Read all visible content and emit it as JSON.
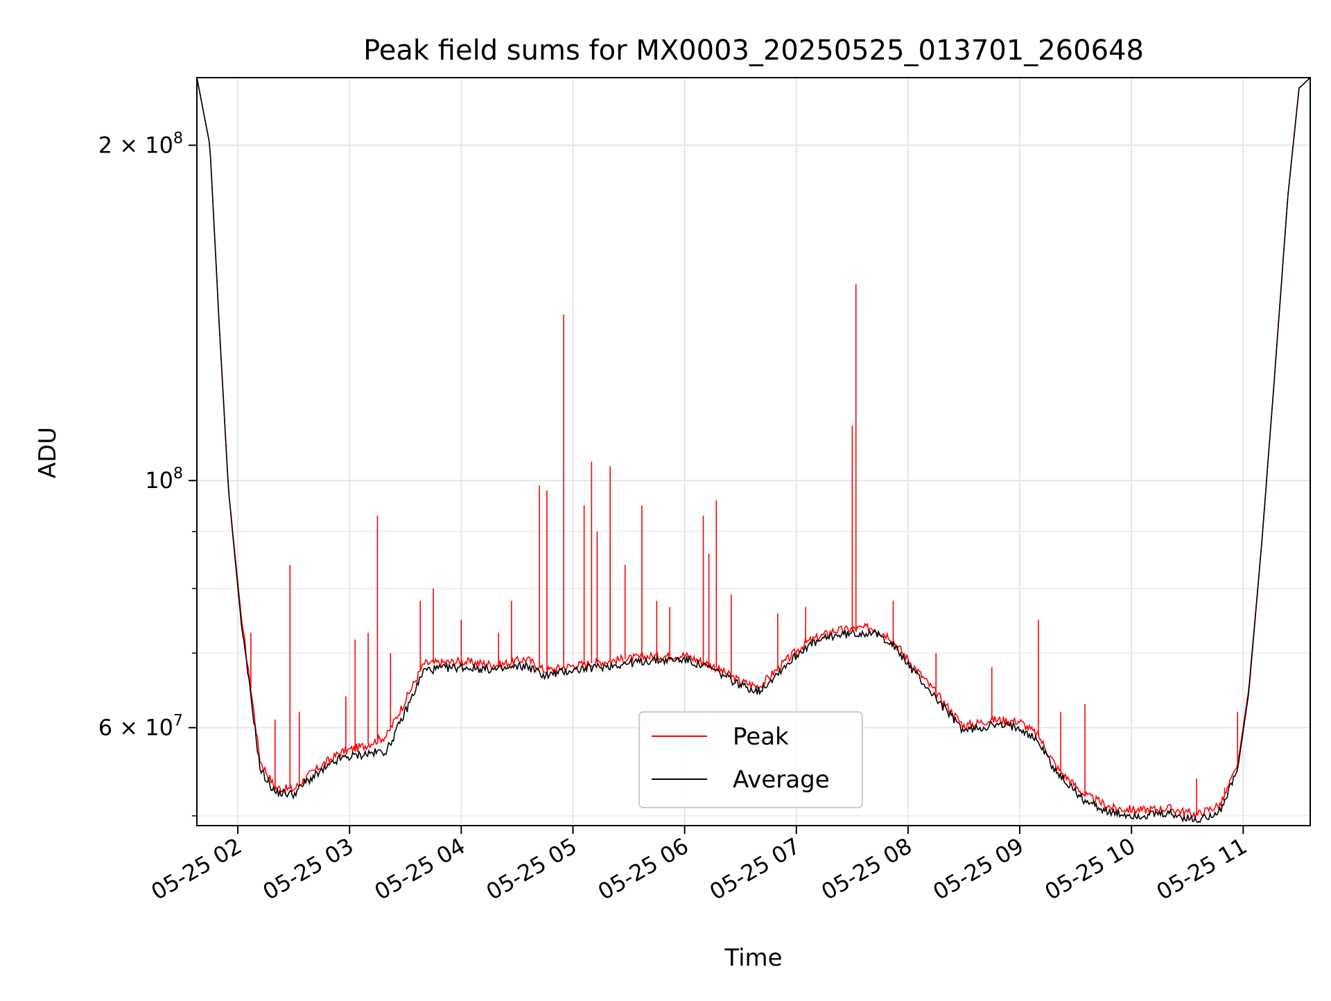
{
  "chart_data": {
    "type": "line",
    "title": "Peak field sums for MX0003_20250525_013701_260648",
    "xlabel": "Time",
    "ylabel": "ADU",
    "yscale": "log",
    "xlim": [
      "2025-05-25T01:38",
      "2025-05-25T11:36"
    ],
    "ylim": [
      49000000,
      230000000
    ],
    "grid": true,
    "legend_position": "lower center",
    "x_tick_labels": [
      "05-25 02",
      "05-25 03",
      "05-25 04",
      "05-25 05",
      "05-25 06",
      "05-25 07",
      "05-25 08",
      "05-25 09",
      "05-25 10",
      "05-25 11"
    ],
    "x_ticks": [
      "2025-05-25T02:00",
      "2025-05-25T03:00",
      "2025-05-25T04:00",
      "2025-05-25T05:00",
      "2025-05-25T06:00",
      "2025-05-25T07:00",
      "2025-05-25T08:00",
      "2025-05-25T09:00",
      "2025-05-25T10:00",
      "2025-05-25T11:00"
    ],
    "y_major_ticks": [
      {
        "value": 200000000,
        "mantissa": "2",
        "base": "10",
        "exp": "8"
      },
      {
        "value": 100000000,
        "mantissa": "",
        "base": "10",
        "exp": "8"
      },
      {
        "value": 60000000,
        "mantissa": "6",
        "base": "10",
        "exp": "7"
      }
    ],
    "y_minor_grid": [
      50000000,
      70000000,
      80000000,
      90000000
    ],
    "series": [
      {
        "name": "Peak",
        "color": "#ff0000",
        "points": [
          [
            "2025-05-25T01:38",
            230000000
          ],
          [
            "2025-05-25T01:45",
            200000000
          ],
          [
            "2025-05-25T01:50",
            138000000
          ],
          [
            "2025-05-25T01:55",
            98000000
          ],
          [
            "2025-05-25T02:02",
            75000000
          ],
          [
            "2025-05-25T02:07",
            65000000
          ],
          [
            "2025-05-25T02:12",
            56000000
          ],
          [
            "2025-05-25T02:20",
            53000000
          ],
          [
            "2025-05-25T02:30",
            52800000
          ],
          [
            "2025-05-25T02:37",
            54200000
          ],
          [
            "2025-05-25T02:45",
            55500000
          ],
          [
            "2025-05-25T02:55",
            57000000
          ],
          [
            "2025-05-25T03:08",
            57800000
          ],
          [
            "2025-05-25T03:20",
            59000000
          ],
          [
            "2025-05-25T03:30",
            63500000
          ],
          [
            "2025-05-25T03:40",
            68500000
          ],
          [
            "2025-05-25T04:00",
            68800000
          ],
          [
            "2025-05-25T04:20",
            68300000
          ],
          [
            "2025-05-25T04:35",
            69200000
          ],
          [
            "2025-05-25T04:45",
            67500000
          ],
          [
            "2025-05-25T05:00",
            68200000
          ],
          [
            "2025-05-25T05:20",
            68900000
          ],
          [
            "2025-05-25T05:40",
            69500000
          ],
          [
            "2025-05-25T06:00",
            69700000
          ],
          [
            "2025-05-25T06:15",
            68200000
          ],
          [
            "2025-05-25T06:30",
            66000000
          ],
          [
            "2025-05-25T06:40",
            65300000
          ],
          [
            "2025-05-25T06:52",
            68300000
          ],
          [
            "2025-05-25T07:05",
            71500000
          ],
          [
            "2025-05-25T07:20",
            73300000
          ],
          [
            "2025-05-25T07:40",
            73800000
          ],
          [
            "2025-05-25T07:50",
            72500000
          ],
          [
            "2025-05-25T08:05",
            67500000
          ],
          [
            "2025-05-25T08:20",
            63000000
          ],
          [
            "2025-05-25T08:30",
            60200000
          ],
          [
            "2025-05-25T08:45",
            61000000
          ],
          [
            "2025-05-25T09:00",
            60800000
          ],
          [
            "2025-05-25T09:10",
            59000000
          ],
          [
            "2025-05-25T09:20",
            55200000
          ],
          [
            "2025-05-25T09:35",
            52200000
          ],
          [
            "2025-05-25T09:50",
            50800000
          ],
          [
            "2025-05-25T10:05",
            50600000
          ],
          [
            "2025-05-25T10:20",
            50800000
          ],
          [
            "2025-05-25T10:35",
            50100000
          ],
          [
            "2025-05-25T10:48",
            51200000
          ],
          [
            "2025-05-25T10:57",
            55500000
          ],
          [
            "2025-05-25T11:03",
            65000000
          ],
          [
            "2025-05-25T11:10",
            88000000
          ],
          [
            "2025-05-25T11:17",
            125000000
          ],
          [
            "2025-05-25T11:24",
            180000000
          ],
          [
            "2025-05-25T11:30",
            225000000
          ],
          [
            "2025-05-25T11:36",
            230000000
          ]
        ],
        "spikes": [
          [
            "2025-05-25T02:07",
            73000000
          ],
          [
            "2025-05-25T02:20",
            61000000
          ],
          [
            "2025-05-25T02:28",
            84000000
          ],
          [
            "2025-05-25T02:33",
            62000000
          ],
          [
            "2025-05-25T02:58",
            64000000
          ],
          [
            "2025-05-25T03:03",
            72000000
          ],
          [
            "2025-05-25T03:10",
            73000000
          ],
          [
            "2025-05-25T03:15",
            93000000
          ],
          [
            "2025-05-25T03:22",
            70000000
          ],
          [
            "2025-05-25T03:38",
            78000000
          ],
          [
            "2025-05-25T03:45",
            80000000
          ],
          [
            "2025-05-25T04:00",
            75000000
          ],
          [
            "2025-05-25T04:20",
            73000000
          ],
          [
            "2025-05-25T04:27",
            78000000
          ],
          [
            "2025-05-25T04:42",
            99000000
          ],
          [
            "2025-05-25T04:46",
            98000000
          ],
          [
            "2025-05-25T04:55",
            141000000
          ],
          [
            "2025-05-25T05:06",
            95000000
          ],
          [
            "2025-05-25T05:10",
            104000000
          ],
          [
            "2025-05-25T05:13",
            90000000
          ],
          [
            "2025-05-25T05:20",
            103000000
          ],
          [
            "2025-05-25T05:28",
            84000000
          ],
          [
            "2025-05-25T05:37",
            95000000
          ],
          [
            "2025-05-25T05:45",
            78000000
          ],
          [
            "2025-05-25T05:52",
            77000000
          ],
          [
            "2025-05-25T06:10",
            93000000
          ],
          [
            "2025-05-25T06:13",
            86000000
          ],
          [
            "2025-05-25T06:17",
            96000000
          ],
          [
            "2025-05-25T06:25",
            79000000
          ],
          [
            "2025-05-25T06:50",
            76000000
          ],
          [
            "2025-05-25T07:05",
            77000000
          ],
          [
            "2025-05-25T07:30",
            112000000
          ],
          [
            "2025-05-25T07:32",
            150000000
          ],
          [
            "2025-05-25T07:52",
            78000000
          ],
          [
            "2025-05-25T08:15",
            70000000
          ],
          [
            "2025-05-25T08:45",
            68000000
          ],
          [
            "2025-05-25T09:10",
            75000000
          ],
          [
            "2025-05-25T09:22",
            62000000
          ],
          [
            "2025-05-25T09:35",
            63000000
          ],
          [
            "2025-05-25T10:35",
            54000000
          ],
          [
            "2025-05-25T10:50",
            53000000
          ],
          [
            "2025-05-25T10:57",
            62000000
          ]
        ]
      },
      {
        "name": "Average",
        "color": "#000000",
        "points": [
          [
            "2025-05-25T01:38",
            230000000
          ],
          [
            "2025-05-25T01:45",
            200000000
          ],
          [
            "2025-05-25T01:50",
            138000000
          ],
          [
            "2025-05-25T01:55",
            98000000
          ],
          [
            "2025-05-25T02:02",
            74000000
          ],
          [
            "2025-05-25T02:07",
            64000000
          ],
          [
            "2025-05-25T02:12",
            55000000
          ],
          [
            "2025-05-25T02:20",
            52500000
          ],
          [
            "2025-05-25T02:30",
            52300000
          ],
          [
            "2025-05-25T02:37",
            53700000
          ],
          [
            "2025-05-25T02:45",
            54800000
          ],
          [
            "2025-05-25T02:55",
            56300000
          ],
          [
            "2025-05-25T03:08",
            56800000
          ],
          [
            "2025-05-25T03:20",
            57200000
          ],
          [
            "2025-05-25T03:30",
            62000000
          ],
          [
            "2025-05-25T03:40",
            67600000
          ],
          [
            "2025-05-25T04:00",
            68000000
          ],
          [
            "2025-05-25T04:20",
            67600000
          ],
          [
            "2025-05-25T04:35",
            68200000
          ],
          [
            "2025-05-25T04:45",
            66800000
          ],
          [
            "2025-05-25T05:00",
            67600000
          ],
          [
            "2025-05-25T05:20",
            68200000
          ],
          [
            "2025-05-25T05:40",
            68900000
          ],
          [
            "2025-05-25T06:00",
            69100000
          ],
          [
            "2025-05-25T06:15",
            67700000
          ],
          [
            "2025-05-25T06:30",
            65500000
          ],
          [
            "2025-05-25T06:40",
            64700000
          ],
          [
            "2025-05-25T06:52",
            67700000
          ],
          [
            "2025-05-25T07:05",
            70900000
          ],
          [
            "2025-05-25T07:20",
            72600000
          ],
          [
            "2025-05-25T07:40",
            73100000
          ],
          [
            "2025-05-25T07:50",
            71800000
          ],
          [
            "2025-05-25T08:05",
            66800000
          ],
          [
            "2025-05-25T08:20",
            62300000
          ],
          [
            "2025-05-25T08:30",
            59600000
          ],
          [
            "2025-05-25T08:45",
            60300000
          ],
          [
            "2025-05-25T09:00",
            60100000
          ],
          [
            "2025-05-25T09:10",
            58300000
          ],
          [
            "2025-05-25T09:20",
            54600000
          ],
          [
            "2025-05-25T09:35",
            51600000
          ],
          [
            "2025-05-25T09:50",
            50200000
          ],
          [
            "2025-05-25T10:05",
            50000000
          ],
          [
            "2025-05-25T10:20",
            50200000
          ],
          [
            "2025-05-25T10:35",
            49500000
          ],
          [
            "2025-05-25T10:48",
            50600000
          ],
          [
            "2025-05-25T10:57",
            55000000
          ],
          [
            "2025-05-25T11:03",
            64500000
          ],
          [
            "2025-05-25T11:10",
            88000000
          ],
          [
            "2025-05-25T11:17",
            125000000
          ],
          [
            "2025-05-25T11:24",
            180000000
          ],
          [
            "2025-05-25T11:30",
            225000000
          ],
          [
            "2025-05-25T11:36",
            230000000
          ]
        ]
      }
    ]
  }
}
